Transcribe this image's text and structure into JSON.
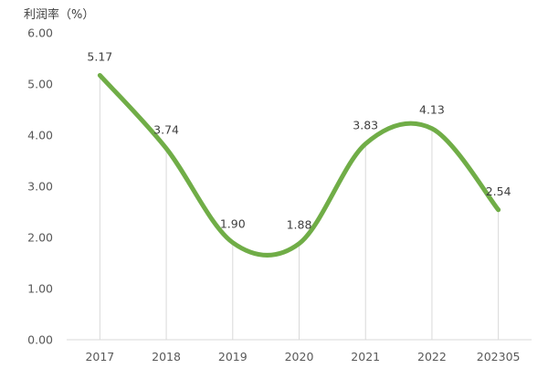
{
  "chart_data": {
    "type": "line",
    "ylabel": "利润率（%）",
    "categories": [
      "2017",
      "2018",
      "2019",
      "2020",
      "2021",
      "2022",
      "202305"
    ],
    "ytick_labels": [
      "0.00",
      "1.00",
      "2.00",
      "3.00",
      "4.00",
      "5.00",
      "6.00"
    ],
    "ylim": [
      0,
      6
    ],
    "series": [
      {
        "values": [
          5.17,
          3.74,
          1.9,
          1.88,
          3.83,
          4.13,
          2.54
        ],
        "data_labels": [
          "5.17",
          "3.74",
          "1.90",
          "1.88",
          "3.83",
          "4.13",
          "2.54"
        ],
        "color": "#70ad47"
      }
    ],
    "smooth": true,
    "drop_lines": true,
    "grid": false,
    "legend": "none"
  }
}
